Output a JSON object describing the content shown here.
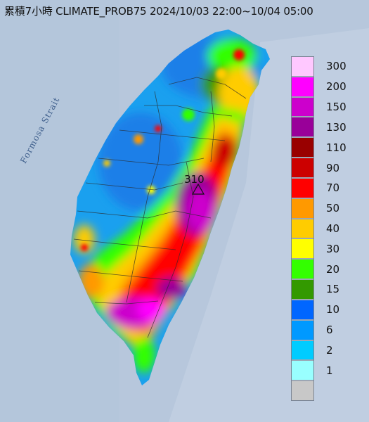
{
  "title": "累積7小時 CLIMATE_PROB75 2024/10/03 22:00~10/04 05:00",
  "strait_label": "Formosa Strait",
  "peak_value": "310",
  "legend": [
    {
      "label": "300",
      "color": "#ffc8ff"
    },
    {
      "label": "200",
      "color": "#ff00ff"
    },
    {
      "label": "150",
      "color": "#cc00cc"
    },
    {
      "label": "130",
      "color": "#990099"
    },
    {
      "label": "110",
      "color": "#990000"
    },
    {
      "label": "90",
      "color": "#cc0000"
    },
    {
      "label": "70",
      "color": "#ff0000"
    },
    {
      "label": "50",
      "color": "#ff9900"
    },
    {
      "label": "40",
      "color": "#ffcc00"
    },
    {
      "label": "30",
      "color": "#ffff00"
    },
    {
      "label": "20",
      "color": "#33ff00"
    },
    {
      "label": "15",
      "color": "#339900"
    },
    {
      "label": "10",
      "color": "#0066ff"
    },
    {
      "label": "6",
      "color": "#0099ff"
    },
    {
      "label": "2",
      "color": "#00ccff"
    },
    {
      "label": "1",
      "color": "#99ffff"
    },
    {
      "label": "",
      "color": "#c8c8c8"
    }
  ]
}
